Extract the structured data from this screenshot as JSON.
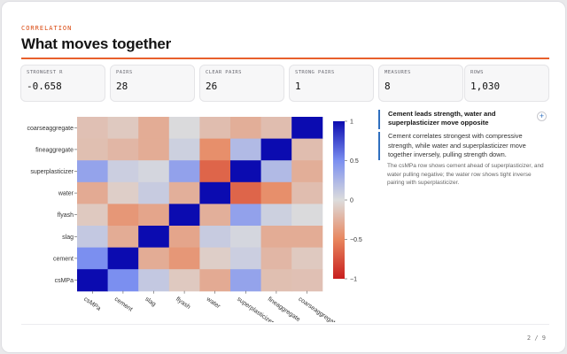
{
  "header": {
    "eyebrow": "CORRELATION",
    "title": "What moves together"
  },
  "stats": [
    {
      "label": "STRONGEST R",
      "value": "-0.658"
    },
    {
      "label": "PAIRS",
      "value": "28"
    },
    {
      "label": "CLEAR PAIRS",
      "value": "26"
    },
    {
      "label": "STRONG PAIRS",
      "value": "1"
    },
    {
      "label": "MEASURES",
      "value": "8"
    },
    {
      "label": "ROWS",
      "value": "1,030"
    }
  ],
  "insight": {
    "headline": "Cement leads strength, water and superplasticizer move opposite",
    "body": "Cement correlates strongest with compressive strength, while water and superplasticizer move together inversely, pulling strength down.",
    "note": "The csMPa row shows cement ahead of superplasticizer, and water pulling negative; the water row shows tight inverse pairing with superplasticizer.",
    "add_icon": "plus-icon"
  },
  "pager": "2 / 9",
  "colors": {
    "accent": "#e8602c",
    "eyebrow": "#d9480f",
    "insight_bar": "#2f6fbf",
    "positive": "#0b0bb0",
    "neutral": "#dcdcdc",
    "negative": "#c81e1e"
  },
  "chart_data": {
    "type": "heatmap",
    "x": [
      "csMPa",
      "cement",
      "slag",
      "flyash",
      "water",
      "superplasticizer",
      "fineaggregate",
      "coarseaggregate"
    ],
    "y": [
      "coarseaggregate",
      "fineaggregate",
      "superplasticizer",
      "water",
      "flyash",
      "slag",
      "cement",
      "csMPa"
    ],
    "values": [
      [
        -0.16,
        -0.11,
        -0.28,
        0.01,
        -0.18,
        -0.27,
        -0.18,
        1.0
      ],
      [
        -0.17,
        -0.22,
        -0.28,
        0.08,
        -0.45,
        0.22,
        1.0,
        -0.18
      ],
      [
        0.37,
        0.09,
        0.04,
        0.38,
        -0.66,
        1.0,
        0.22,
        -0.27
      ],
      [
        -0.29,
        -0.08,
        0.11,
        -0.26,
        1.0,
        -0.66,
        -0.45,
        -0.18
      ],
      [
        -0.11,
        -0.4,
        -0.32,
        1.0,
        -0.26,
        0.38,
        0.08,
        0.01
      ],
      [
        0.13,
        -0.28,
        1.0,
        -0.32,
        0.11,
        0.04,
        -0.28,
        -0.28
      ],
      [
        0.5,
        1.0,
        -0.28,
        -0.4,
        -0.08,
        0.09,
        -0.22,
        -0.11
      ],
      [
        1.0,
        0.5,
        0.13,
        -0.11,
        -0.29,
        0.37,
        -0.17,
        -0.16
      ]
    ],
    "zlim": [
      -1,
      1
    ],
    "colorbar_ticks": [
      {
        "value": 1,
        "label": "1"
      },
      {
        "value": 0.5,
        "label": "0.5"
      },
      {
        "value": 0,
        "label": "0"
      },
      {
        "value": -0.5,
        "label": "−0.5"
      },
      {
        "value": -1,
        "label": "−1"
      }
    ]
  }
}
